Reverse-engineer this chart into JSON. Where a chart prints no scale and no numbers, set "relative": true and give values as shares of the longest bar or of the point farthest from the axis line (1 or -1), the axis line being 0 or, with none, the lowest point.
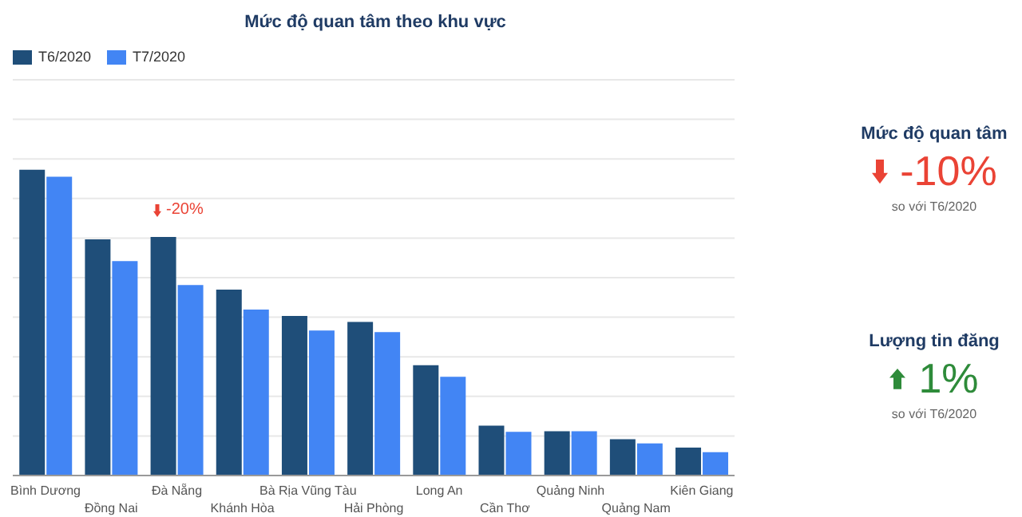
{
  "chart_data": [
    {
      "type": "bar",
      "title": "Mức độ quan tâm theo khu vực",
      "relative": true,
      "grid": "y",
      "legend": "top left",
      "categories": [
        "Bình Dương",
        "Đồng Nai",
        "Đà Nẵng",
        "Khánh Hòa",
        "Bà Rịa Vũng Tàu",
        "Hải Phòng",
        "Long An",
        "Cần Thơ",
        "Quảng Ninh",
        "Quảng Nam",
        "Kiên Giang"
      ],
      "series": [
        {
          "name": "T6/2020",
          "color": "#1f4e79",
          "values": [
            1,
            0.772,
            0.78,
            0.608,
            0.522,
            0.502,
            0.361,
            0.163,
            0.145,
            0.119,
            0.091
          ]
        },
        {
          "name": "T7/2020",
          "color": "#4285f4",
          "values": [
            0.977,
            0.701,
            0.623,
            0.543,
            0.474,
            0.469,
            0.323,
            0.143,
            0.145,
            0.105,
            0.076
          ]
        }
      ],
      "annotations": [
        "-20%"
      ]
    },
    {
      "type": "other",
      "categories": [
        "Mức độ quan tâm",
        "Lượng tin đăng"
      ],
      "values": [
        -10,
        1
      ],
      "value_labels": [
        "-10%",
        "1%"
      ],
      "colors": [
        "#ea4335",
        "#2e8b3a"
      ],
      "annotations": [
        "so với T6/2020",
        "so với T6/2020"
      ]
    }
  ]
}
